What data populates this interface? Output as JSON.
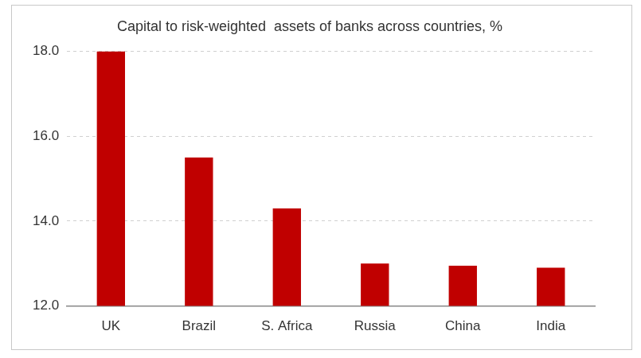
{
  "chart_data": {
    "type": "bar",
    "title": "Capital to risk-weighted  assets of banks across countries, %",
    "categories": [
      "UK",
      "Brazil",
      "S. Africa",
      "Russia",
      "China",
      "India"
    ],
    "values": [
      18.0,
      15.5,
      14.3,
      13.0,
      12.95,
      12.9
    ],
    "color": "#c00000",
    "ylim": [
      12,
      18
    ],
    "yticks": [
      {
        "value": 12,
        "label": "12.0"
      },
      {
        "value": 14,
        "label": "14.0"
      },
      {
        "value": 16,
        "label": "16.0"
      },
      {
        "value": 18,
        "label": "18.0"
      }
    ],
    "grid": true
  }
}
